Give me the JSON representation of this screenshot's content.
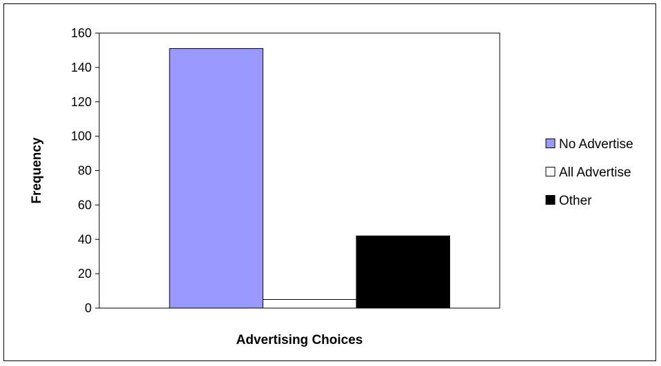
{
  "chart_data": {
    "type": "bar",
    "title": "",
    "xlabel": "Advertising Choices",
    "ylabel": "Frequency",
    "ylim": [
      0,
      160
    ],
    "yticks": [
      0,
      20,
      40,
      60,
      80,
      100,
      120,
      140,
      160
    ],
    "grid": false,
    "legend_position": "right",
    "categories": [
      ""
    ],
    "series": [
      {
        "name": "No Advertise",
        "values": [
          151
        ],
        "color": "#9999ff"
      },
      {
        "name": "All Advertise",
        "values": [
          5
        ],
        "color": "#ffffff"
      },
      {
        "name": "Other",
        "values": [
          42
        ],
        "color": "#000000"
      }
    ]
  }
}
